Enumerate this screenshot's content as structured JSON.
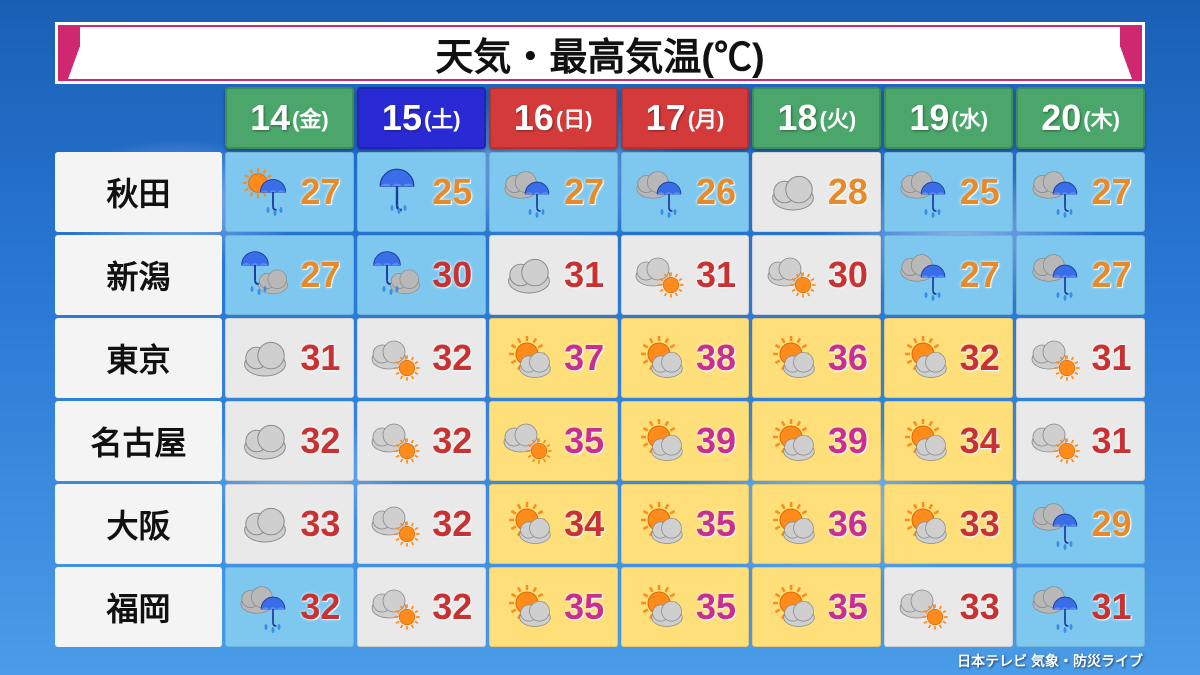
{
  "title": "天気・最高気温(℃)",
  "caption": "日本テレビ 気象・防災ライブ",
  "colors": {
    "header_green": "#4aa66a",
    "header_blue": "#2a2ad4",
    "header_red": "#d43a3a",
    "bg_sunny": "#ffdf7a",
    "bg_cloudy": "#e9e9e9",
    "bg_rain": "#7ec8f0",
    "temp_high": "#c93232",
    "temp_hot": "#c92f8f",
    "temp_mid": "#e88a2a",
    "temp_cell": "#ffffff"
  },
  "days": [
    {
      "num": "14",
      "wd": "(金)",
      "color": "header_green"
    },
    {
      "num": "15",
      "wd": "(土)",
      "color": "header_blue"
    },
    {
      "num": "16",
      "wd": "(日)",
      "color": "header_red"
    },
    {
      "num": "17",
      "wd": "(月)",
      "color": "header_red"
    },
    {
      "num": "18",
      "wd": "(火)",
      "color": "header_green"
    },
    {
      "num": "19",
      "wd": "(水)",
      "color": "header_green"
    },
    {
      "num": "20",
      "wd": "(木)",
      "color": "header_green"
    }
  ],
  "cities": [
    "秋田",
    "新潟",
    "東京",
    "名古屋",
    "大阪",
    "福岡"
  ],
  "cells": [
    [
      {
        "icon": "sun-rain",
        "bg": "bg_rain",
        "temp": 27,
        "tc": "temp_mid"
      },
      {
        "icon": "rain",
        "bg": "bg_rain",
        "temp": 25,
        "tc": "temp_mid"
      },
      {
        "icon": "cloud-rain",
        "bg": "bg_rain",
        "temp": 27,
        "tc": "temp_mid"
      },
      {
        "icon": "cloud-rain",
        "bg": "bg_rain",
        "temp": 26,
        "tc": "temp_mid"
      },
      {
        "icon": "cloud",
        "bg": "bg_cloudy",
        "temp": 28,
        "tc": "temp_mid"
      },
      {
        "icon": "cloud-rain",
        "bg": "bg_rain",
        "temp": 25,
        "tc": "temp_mid"
      },
      {
        "icon": "cloud-rain",
        "bg": "bg_rain",
        "temp": 27,
        "tc": "temp_mid"
      }
    ],
    [
      {
        "icon": "rain-cloud",
        "bg": "bg_rain",
        "temp": 27,
        "tc": "temp_mid"
      },
      {
        "icon": "rain-cloud",
        "bg": "bg_rain",
        "temp": 30,
        "tc": "temp_high"
      },
      {
        "icon": "cloud",
        "bg": "bg_cloudy",
        "temp": 31,
        "tc": "temp_high"
      },
      {
        "icon": "cloud-sun",
        "bg": "bg_cloudy",
        "temp": 31,
        "tc": "temp_high"
      },
      {
        "icon": "cloud-sun",
        "bg": "bg_cloudy",
        "temp": 30,
        "tc": "temp_high"
      },
      {
        "icon": "cloud-rain",
        "bg": "bg_rain",
        "temp": 27,
        "tc": "temp_mid"
      },
      {
        "icon": "cloud-rain",
        "bg": "bg_rain",
        "temp": 27,
        "tc": "temp_mid"
      }
    ],
    [
      {
        "icon": "cloud",
        "bg": "bg_cloudy",
        "temp": 31,
        "tc": "temp_high"
      },
      {
        "icon": "cloud-sun",
        "bg": "bg_cloudy",
        "temp": 32,
        "tc": "temp_high"
      },
      {
        "icon": "sun-cloud",
        "bg": "bg_sunny",
        "temp": 37,
        "tc": "temp_hot"
      },
      {
        "icon": "sun-cloud",
        "bg": "bg_sunny",
        "temp": 38,
        "tc": "temp_hot"
      },
      {
        "icon": "sun-cloud",
        "bg": "bg_sunny",
        "temp": 36,
        "tc": "temp_hot"
      },
      {
        "icon": "sun-cloud",
        "bg": "bg_sunny",
        "temp": 32,
        "tc": "temp_high"
      },
      {
        "icon": "cloud-sun",
        "bg": "bg_cloudy",
        "temp": 31,
        "tc": "temp_high"
      }
    ],
    [
      {
        "icon": "cloud",
        "bg": "bg_cloudy",
        "temp": 32,
        "tc": "temp_high"
      },
      {
        "icon": "cloud-sun",
        "bg": "bg_cloudy",
        "temp": 32,
        "tc": "temp_high"
      },
      {
        "icon": "cloud-sun",
        "bg": "bg_sunny",
        "temp": 35,
        "tc": "temp_hot"
      },
      {
        "icon": "sun-cloud",
        "bg": "bg_sunny",
        "temp": 39,
        "tc": "temp_hot"
      },
      {
        "icon": "sun-cloud",
        "bg": "bg_sunny",
        "temp": 39,
        "tc": "temp_hot"
      },
      {
        "icon": "sun-cloud",
        "bg": "bg_sunny",
        "temp": 34,
        "tc": "temp_high"
      },
      {
        "icon": "cloud-sun",
        "bg": "bg_cloudy",
        "temp": 31,
        "tc": "temp_high"
      }
    ],
    [
      {
        "icon": "cloud",
        "bg": "bg_cloudy",
        "temp": 33,
        "tc": "temp_high"
      },
      {
        "icon": "cloud-sun",
        "bg": "bg_cloudy",
        "temp": 32,
        "tc": "temp_high"
      },
      {
        "icon": "sun-cloud",
        "bg": "bg_sunny",
        "temp": 34,
        "tc": "temp_high"
      },
      {
        "icon": "sun-cloud",
        "bg": "bg_sunny",
        "temp": 35,
        "tc": "temp_hot"
      },
      {
        "icon": "sun-cloud",
        "bg": "bg_sunny",
        "temp": 36,
        "tc": "temp_hot"
      },
      {
        "icon": "sun-cloud",
        "bg": "bg_sunny",
        "temp": 33,
        "tc": "temp_high"
      },
      {
        "icon": "cloud-rain",
        "bg": "bg_rain",
        "temp": 29,
        "tc": "temp_mid"
      }
    ],
    [
      {
        "icon": "cloud-rain",
        "bg": "bg_rain",
        "temp": 32,
        "tc": "temp_high"
      },
      {
        "icon": "cloud-sun",
        "bg": "bg_cloudy",
        "temp": 32,
        "tc": "temp_high"
      },
      {
        "icon": "sun-cloud",
        "bg": "bg_sunny",
        "temp": 35,
        "tc": "temp_hot"
      },
      {
        "icon": "sun-cloud",
        "bg": "bg_sunny",
        "temp": 35,
        "tc": "temp_hot"
      },
      {
        "icon": "sun-cloud",
        "bg": "bg_sunny",
        "temp": 35,
        "tc": "temp_hot"
      },
      {
        "icon": "cloud-sun",
        "bg": "bg_cloudy",
        "temp": 33,
        "tc": "temp_high"
      },
      {
        "icon": "cloud-rain",
        "bg": "bg_rain",
        "temp": 31,
        "tc": "temp_high"
      }
    ]
  ]
}
